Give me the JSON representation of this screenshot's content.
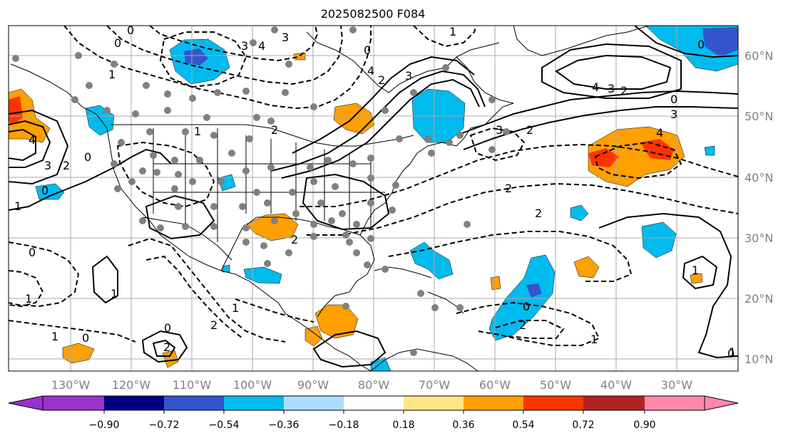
{
  "title": "2025082500 F084",
  "lon_labels": [
    "130°W",
    "120°W",
    "110°W",
    "100°W",
    "90°W",
    "80°W",
    "70°W",
    "60°W",
    "50°W",
    "40°W",
    "30°W"
  ],
  "lat_labels": [
    "60°N",
    "50°N",
    "40°N",
    "30°N",
    "20°N",
    "10°N"
  ],
  "colorbar": {
    "ticks": [
      "−0.90",
      "−0.72",
      "−0.54",
      "−0.36",
      "−0.18",
      "0.18",
      "0.36",
      "0.54",
      "0.72",
      "0.90"
    ],
    "colors": [
      "#9933cc",
      "#000080",
      "#3355cc",
      "#00bbee",
      "#aaddff",
      "#ffffff",
      "#ffe680",
      "#ffa000",
      "#ff3300",
      "#b22222",
      "#ff88aa"
    ]
  },
  "contour_labels": [
    "0",
    "0",
    "1",
    "3",
    "3",
    "4",
    "0",
    "4",
    "4",
    "2",
    "3",
    "1",
    "2",
    "0",
    "2",
    "3",
    "2",
    "4",
    "3",
    "2",
    "0",
    "3",
    "4",
    "3",
    "1",
    "0",
    "1",
    "2",
    "2",
    "0",
    "1",
    "2",
    "1",
    "1",
    "0",
    "1",
    "2",
    "0",
    "0",
    "1",
    "1",
    "0",
    "0",
    "2",
    "1",
    "2"
  ],
  "colors": {
    "land": "#000000",
    "grid": "#aaaaaa",
    "station": "#808080",
    "pos_light": "#ffa000",
    "pos_dark": "#ff3300",
    "neg_light": "#00bbee",
    "neg_dark": "#3355cc"
  }
}
